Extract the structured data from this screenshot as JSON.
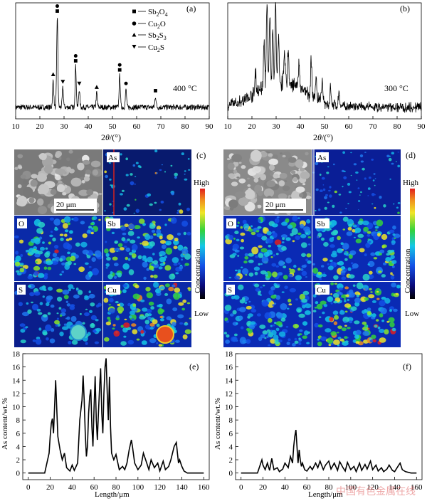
{
  "panel_labels": [
    "(a)",
    "(b)",
    "(c)",
    "(d)",
    "(e)",
    "(f)"
  ],
  "xrd": {
    "xlabel": "2θ/(°)",
    "xticks": [
      10,
      20,
      30,
      40,
      50,
      60,
      70,
      80,
      90
    ],
    "legend": [
      {
        "marker": "square",
        "label": "Sb2O4"
      },
      {
        "marker": "circle",
        "label": "Cu2O"
      },
      {
        "marker": "triangle-up",
        "label": "Sb2S3"
      },
      {
        "marker": "triangle-down",
        "label": "Cu2S"
      }
    ],
    "a_annotation": "400 °C",
    "b_annotation": "300 °C"
  },
  "maps": {
    "tiles": [
      "",
      "As",
      "O",
      "Sb",
      "S",
      "Cu"
    ],
    "scalebar": "20 μm",
    "colorbar_high": "High",
    "colorbar_low": "Low",
    "colorbar_title": "Concentration"
  },
  "watermark": "中国有色金属在线",
  "chart_data": [
    {
      "panel": "(a)",
      "type": "line",
      "title": "",
      "xlabel": "2θ/(°)",
      "ylabel": "",
      "xlim": [
        10,
        90
      ],
      "peaks": [
        {
          "x": 25.5,
          "h": 0.3,
          "marker": "triangle-up"
        },
        {
          "x": 27.2,
          "h": 1.0,
          "marker": "circle-square"
        },
        {
          "x": 29.5,
          "h": 0.22,
          "marker": "triangle-down"
        },
        {
          "x": 34.8,
          "h": 0.45,
          "marker": "circle-square"
        },
        {
          "x": 36.3,
          "h": 0.2,
          "marker": "triangle-down"
        },
        {
          "x": 43.5,
          "h": 0.16,
          "marker": "triangle-up"
        },
        {
          "x": 53.0,
          "h": 0.35,
          "marker": "circle-square"
        },
        {
          "x": 55.6,
          "h": 0.2,
          "marker": "circle"
        },
        {
          "x": 67.8,
          "h": 0.12,
          "marker": "square"
        }
      ],
      "annotation": "400 °C"
    },
    {
      "panel": "(b)",
      "type": "line",
      "title": "",
      "xlabel": "2θ/(°)",
      "ylabel": "",
      "xlim": [
        10,
        90
      ],
      "peaks": [
        {
          "x": 21.5,
          "h": 0.25
        },
        {
          "x": 25.0,
          "h": 0.5
        },
        {
          "x": 26.2,
          "h": 0.95
        },
        {
          "x": 27.4,
          "h": 0.8
        },
        {
          "x": 28.6,
          "h": 0.65
        },
        {
          "x": 29.8,
          "h": 0.85
        },
        {
          "x": 31.0,
          "h": 0.45
        },
        {
          "x": 33.5,
          "h": 0.32
        },
        {
          "x": 35.0,
          "h": 0.38
        },
        {
          "x": 39.5,
          "h": 0.3
        },
        {
          "x": 44.5,
          "h": 0.42
        },
        {
          "x": 46.5,
          "h": 0.26
        },
        {
          "x": 49.0,
          "h": 0.22
        },
        {
          "x": 52.5,
          "h": 0.2
        },
        {
          "x": 56.0,
          "h": 0.18
        }
      ],
      "annotation": "300 °C"
    },
    {
      "panel": "(e)",
      "type": "line",
      "title": "",
      "xlabel": "Length/μm",
      "ylabel": "As content/wt.%",
      "xlim": [
        -5,
        165
      ],
      "ylim": [
        -1,
        18
      ],
      "xticks": [
        0,
        20,
        40,
        60,
        80,
        100,
        120,
        140,
        160
      ],
      "yticks": [
        0,
        2,
        4,
        6,
        8,
        10,
        12,
        14,
        16,
        18
      ],
      "x": [
        0,
        5,
        10,
        15,
        17,
        19,
        20,
        21,
        22,
        23,
        24,
        25,
        27,
        29,
        31,
        33,
        35,
        38,
        40,
        42,
        45,
        47,
        49,
        50,
        51,
        52,
        53,
        54,
        55,
        56,
        57,
        58,
        59,
        60,
        61,
        62,
        63,
        64,
        65,
        66,
        67,
        68,
        69,
        70,
        71,
        72,
        73,
        74,
        75,
        76,
        78,
        80,
        83,
        86,
        88,
        90,
        92,
        94,
        95,
        97,
        100,
        103,
        105,
        108,
        110,
        112,
        115,
        118,
        120,
        123,
        125,
        128,
        130,
        133,
        135,
        136,
        137,
        138,
        140,
        142,
        145,
        150,
        155,
        160
      ],
      "y": [
        0,
        0,
        0,
        0,
        1.5,
        3.0,
        5.5,
        7.5,
        8.2,
        6.0,
        10.0,
        14.0,
        5.5,
        3.5,
        2.0,
        3.0,
        0.8,
        0.3,
        1.2,
        0.4,
        1.5,
        8.0,
        11.0,
        14.7,
        11.0,
        6.0,
        2.5,
        4.0,
        9.0,
        11.5,
        12.6,
        7.0,
        4.0,
        10.0,
        14.6,
        8.0,
        5.0,
        9.0,
        12.8,
        15.8,
        9.0,
        6.0,
        12.0,
        16.0,
        17.3,
        12.0,
        8.0,
        14.5,
        7.0,
        3.0,
        2.0,
        2.8,
        0.5,
        1.0,
        0.5,
        1.5,
        3.5,
        5.0,
        4.0,
        1.5,
        0.5,
        1.2,
        3.0,
        1.5,
        0.5,
        2.0,
        0.8,
        1.5,
        0.3,
        1.8,
        0.5,
        1.0,
        2.0,
        4.0,
        4.6,
        3.0,
        1.5,
        2.0,
        1.0,
        0.3,
        0,
        0,
        0,
        0
      ]
    },
    {
      "panel": "(f)",
      "type": "line",
      "title": "",
      "xlabel": "Length/μm",
      "ylabel": "As content/wt.%",
      "xlim": [
        -5,
        165
      ],
      "ylim": [
        -1,
        18
      ],
      "xticks": [
        0,
        20,
        40,
        60,
        80,
        100,
        120,
        140,
        160
      ],
      "yticks": [
        0,
        2,
        4,
        6,
        8,
        10,
        12,
        14,
        16,
        18
      ],
      "x": [
        0,
        5,
        10,
        15,
        17,
        19,
        20,
        22,
        24,
        26,
        28,
        30,
        33,
        35,
        38,
        40,
        43,
        45,
        47,
        48,
        49,
        50,
        51,
        52,
        53,
        54,
        55,
        56,
        58,
        60,
        63,
        65,
        68,
        70,
        72,
        75,
        77,
        80,
        82,
        85,
        88,
        90,
        93,
        95,
        97,
        100,
        103,
        105,
        108,
        110,
        113,
        115,
        118,
        120,
        123,
        125,
        128,
        130,
        133,
        135,
        138,
        140,
        143,
        145,
        147,
        150,
        155,
        160
      ],
      "y": [
        0,
        0,
        0,
        0,
        1.0,
        2.0,
        1.2,
        0.5,
        1.5,
        0.4,
        2.2,
        0.5,
        0.8,
        0.2,
        0.6,
        1.5,
        0.8,
        2.5,
        1.5,
        4.0,
        5.5,
        6.5,
        4.0,
        1.5,
        3.5,
        2.0,
        1.0,
        1.5,
        0.5,
        0.3,
        1.0,
        0.5,
        1.5,
        0.8,
        1.8,
        0.5,
        1.2,
        1.8,
        0.6,
        1.5,
        0.4,
        1.7,
        0.8,
        0.3,
        1.6,
        0.5,
        1.0,
        0.2,
        1.5,
        0.4,
        1.3,
        0.6,
        1.8,
        0.5,
        1.2,
        0.3,
        0.8,
        0.2,
        0.6,
        1.2,
        0.4,
        0.2,
        1.0,
        1.5,
        0.5,
        0.2,
        0,
        0
      ]
    }
  ]
}
